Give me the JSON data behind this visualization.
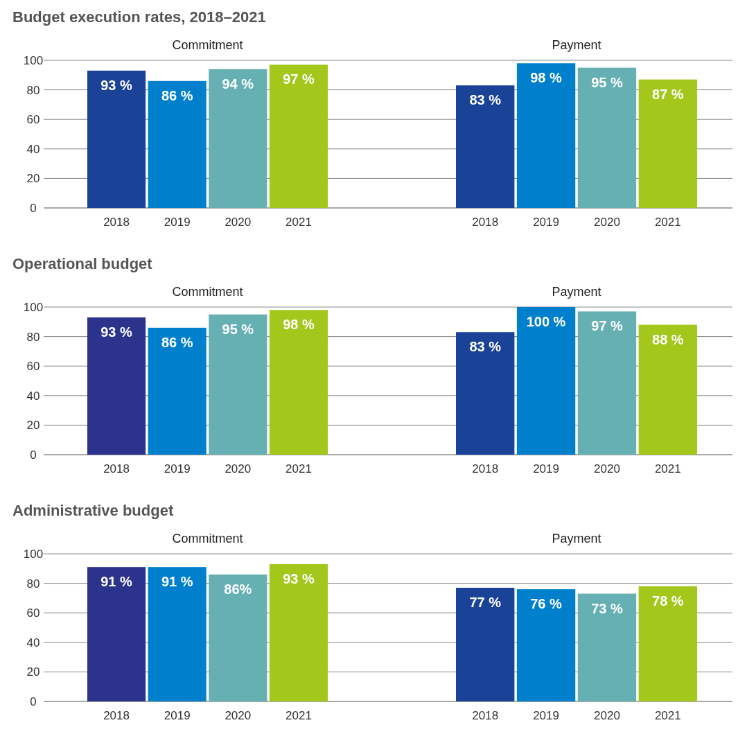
{
  "chart_data": [
    {
      "type": "bar",
      "title": "Budget execution rates, 2018–2021",
      "subtitle": "Commitment",
      "categories": [
        "2018",
        "2019",
        "2020",
        "2021"
      ],
      "values": [
        93,
        86,
        94,
        97
      ],
      "value_labels": [
        "93 %",
        "86 %",
        "94 %",
        "97 %"
      ],
      "colors": [
        "#1a4397",
        "#0080cc",
        "#66b0b3",
        "#a3c71a"
      ],
      "ylim": [
        0,
        100
      ],
      "yticks": [
        0,
        20,
        40,
        60,
        80,
        100
      ],
      "grid": "y"
    },
    {
      "type": "bar",
      "subtitle": "Payment",
      "categories": [
        "2018",
        "2019",
        "2020",
        "2021"
      ],
      "values": [
        83,
        98,
        95,
        87
      ],
      "value_labels": [
        "83 %",
        "98 %",
        "95 %",
        "87 %"
      ],
      "colors": [
        "#1a4397",
        "#0080cc",
        "#66b0b3",
        "#a3c71a"
      ],
      "ylim": [
        0,
        100
      ],
      "yticks": [
        0,
        20,
        40,
        60,
        80,
        100
      ],
      "grid": "y",
      "tick_labels": "x"
    },
    {
      "type": "bar",
      "title": "Operational budget",
      "subtitle": "Commitment",
      "categories": [
        "2018",
        "2019",
        "2020",
        "2021"
      ],
      "values": [
        93,
        86,
        95,
        98
      ],
      "value_labels": [
        "93 %",
        "86 %",
        "95 %",
        "98 %"
      ],
      "colors": [
        "#2b338c",
        "#0080cc",
        "#66b0b3",
        "#a3c71a"
      ],
      "ylim": [
        0,
        100
      ],
      "yticks": [
        0,
        20,
        40,
        60,
        80,
        100
      ],
      "grid": "y"
    },
    {
      "type": "bar",
      "subtitle": "Payment",
      "categories": [
        "2018",
        "2019",
        "2020",
        "2021"
      ],
      "values": [
        83,
        100,
        97,
        88
      ],
      "value_labels": [
        "83 %",
        "100 %",
        "97 %",
        "88 %"
      ],
      "colors": [
        "#1a4397",
        "#0080cc",
        "#66b0b3",
        "#a3c71a"
      ],
      "ylim": [
        0,
        100
      ],
      "yticks": [
        0,
        20,
        40,
        60,
        80,
        100
      ],
      "grid": "y",
      "tick_labels": "x"
    },
    {
      "type": "bar",
      "title": "Administrative budget",
      "subtitle": "Commitment",
      "categories": [
        "2018",
        "2019",
        "2020",
        "2021"
      ],
      "values": [
        91,
        91,
        86,
        93
      ],
      "value_labels": [
        "91 %",
        "91 %",
        "86%",
        "93 %"
      ],
      "colors": [
        "#2b338c",
        "#0080cc",
        "#66b0b3",
        "#a3c71a"
      ],
      "ylim": [
        0,
        100
      ],
      "yticks": [
        0,
        20,
        40,
        60,
        80,
        100
      ],
      "grid": "y"
    },
    {
      "type": "bar",
      "subtitle": "Payment",
      "categories": [
        "2018",
        "2019",
        "2020",
        "2021"
      ],
      "values": [
        77,
        76,
        73,
        78
      ],
      "value_labels": [
        "77 %",
        "76 %",
        "73 %",
        "78 %"
      ],
      "colors": [
        "#1a4397",
        "#0080cc",
        "#66b0b3",
        "#a3c71a"
      ],
      "ylim": [
        0,
        100
      ],
      "yticks": [
        0,
        20,
        40,
        60,
        80,
        100
      ],
      "grid": "y",
      "tick_labels": "x"
    }
  ]
}
